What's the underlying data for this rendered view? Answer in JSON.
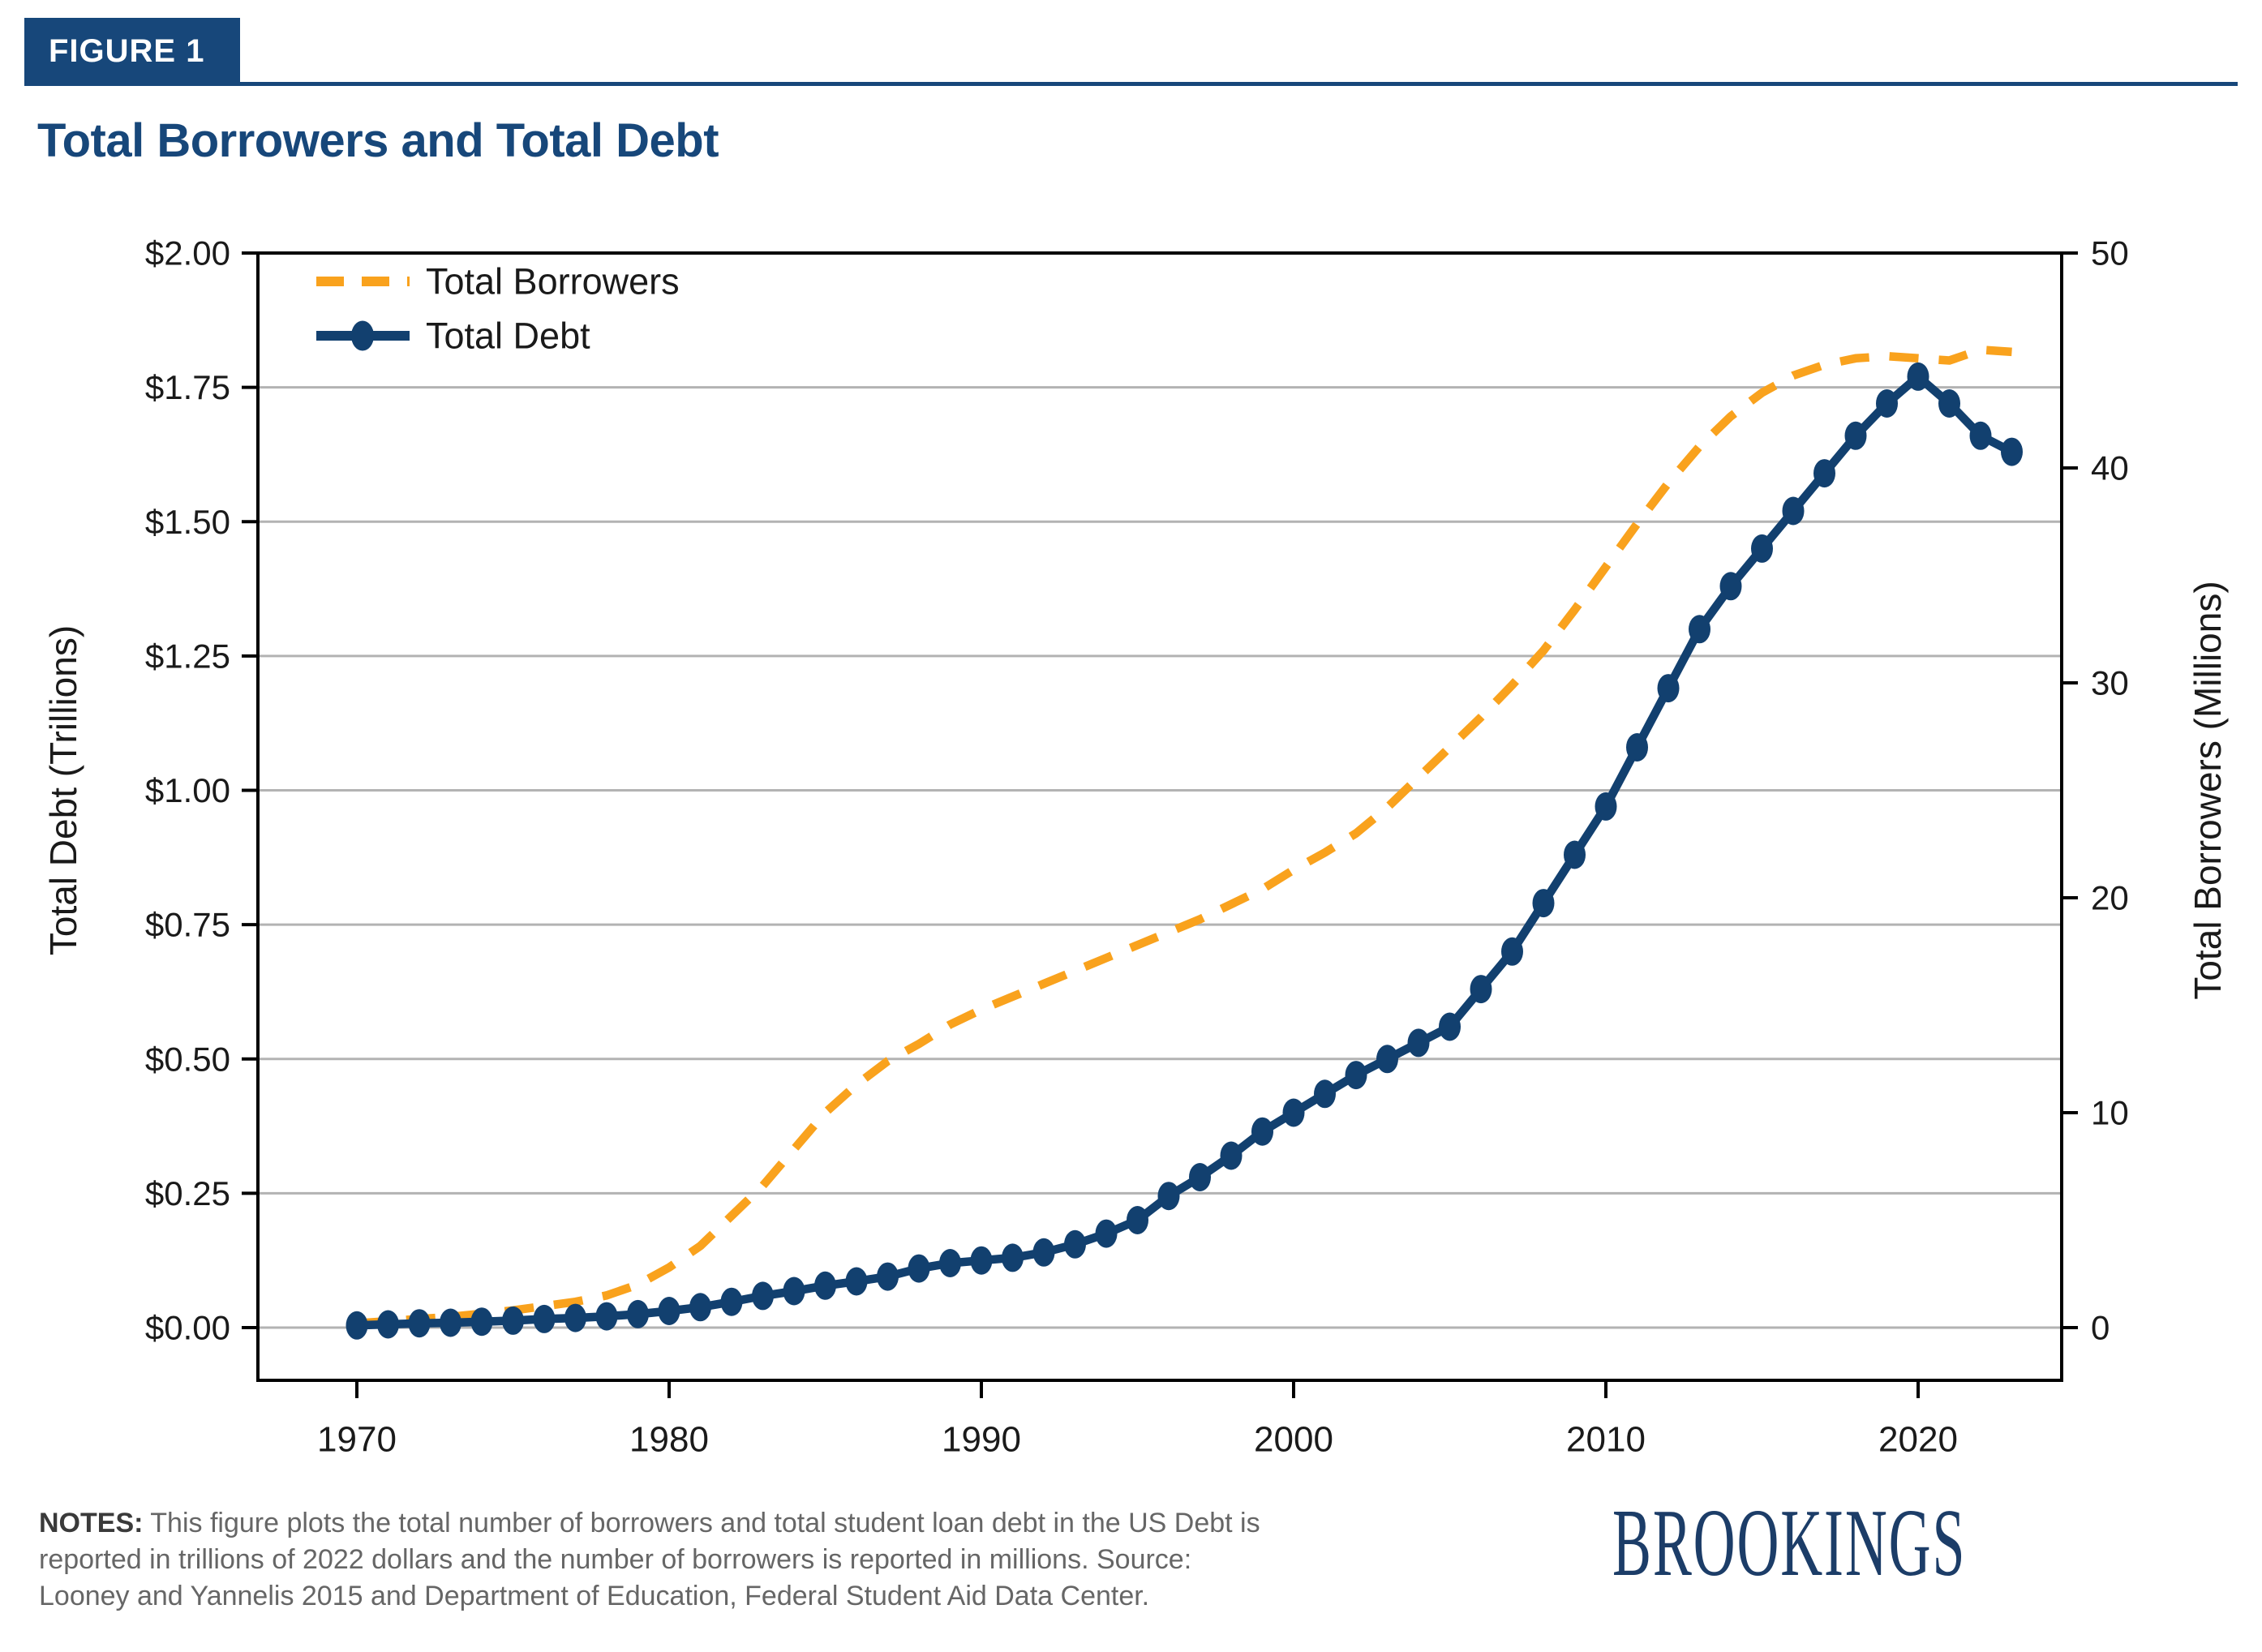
{
  "figure_label": "FIGURE 1",
  "title": "Total Borrowers and Total Debt",
  "notes": {
    "label": "NOTES:",
    "text": " This figure plots the total number of borrowers and total student loan debt in the US Debt is reported in trillions of 2022 dollars and the number of borrowers is reported in millions. Source: Looney and Yannelis 2015 and Department of Education, Federal Student Aid Data Center."
  },
  "brand": "BROOKINGS",
  "colors": {
    "navy": "#17477A",
    "debt_line": "#12406F",
    "borrowers_line": "#F9A21D",
    "gridline": "#b3b3b3",
    "spine": "#000000",
    "tick_text": "#1a1a1a",
    "notes_text": "#666666",
    "brand_text": "#1C3D68"
  },
  "chart_data": {
    "type": "line",
    "title": "Total Borrowers and Total Debt",
    "grid": true,
    "legend_position": "top-left",
    "x": [
      1970,
      1971,
      1972,
      1973,
      1974,
      1975,
      1976,
      1977,
      1978,
      1979,
      1980,
      1981,
      1982,
      1983,
      1984,
      1985,
      1986,
      1987,
      1988,
      1989,
      1990,
      1991,
      1992,
      1993,
      1994,
      1995,
      1996,
      1997,
      1998,
      1999,
      2000,
      2001,
      2002,
      2003,
      2004,
      2005,
      2006,
      2007,
      2008,
      2009,
      2010,
      2011,
      2012,
      2013,
      2014,
      2015,
      2016,
      2017,
      2018,
      2019,
      2020,
      2021,
      2022,
      2023
    ],
    "x_axis": {
      "ticks": [
        1970,
        1980,
        1990,
        2000,
        2010,
        2020
      ],
      "range": [
        1966.8,
        2024.6
      ]
    },
    "left_axis": {
      "label": "Total Debt (Trillions)",
      "tick_labels": [
        "$2.00",
        "$1.75",
        "$1.50",
        "$1.25",
        "$1.00",
        "$0.75",
        "$0.50",
        "$0.25",
        "$0.00"
      ],
      "tick_values": [
        2.0,
        1.75,
        1.5,
        1.25,
        1.0,
        0.75,
        0.5,
        0.25,
        0.0
      ],
      "range": [
        0,
        2
      ]
    },
    "right_axis": {
      "label": "Total Borrowers (Millions)",
      "tick_labels": [
        "50",
        "40",
        "30",
        "20",
        "10",
        "0"
      ],
      "tick_values": [
        50,
        40,
        30,
        20,
        10,
        0
      ],
      "range": [
        0,
        50
      ]
    },
    "series": [
      {
        "name": "Total Borrowers",
        "axis": "right",
        "style": "dashed",
        "color": "#F9A21D",
        "values": [
          0.2,
          0.3,
          0.4,
          0.5,
          0.65,
          0.8,
          1.0,
          1.2,
          1.5,
          2.0,
          2.8,
          3.8,
          5.2,
          6.6,
          8.3,
          10.0,
          11.3,
          12.4,
          13.2,
          14.1,
          14.8,
          15.4,
          16.0,
          16.6,
          17.2,
          17.8,
          18.4,
          19.0,
          19.7,
          20.4,
          21.3,
          22.1,
          23.0,
          24.2,
          25.6,
          27.0,
          28.4,
          29.9,
          31.5,
          33.4,
          35.4,
          37.4,
          39.3,
          41.0,
          42.4,
          43.5,
          44.3,
          44.8,
          45.1,
          45.2,
          45.1,
          45.0,
          45.5,
          45.4
        ]
      },
      {
        "name": "Total Debt",
        "axis": "left",
        "style": "solid-markers",
        "color": "#12406F",
        "values": [
          0.004,
          0.006,
          0.008,
          0.009,
          0.011,
          0.013,
          0.016,
          0.018,
          0.021,
          0.025,
          0.031,
          0.038,
          0.048,
          0.059,
          0.068,
          0.078,
          0.086,
          0.095,
          0.11,
          0.12,
          0.125,
          0.13,
          0.14,
          0.155,
          0.175,
          0.2,
          0.245,
          0.28,
          0.32,
          0.365,
          0.4,
          0.435,
          0.47,
          0.5,
          0.53,
          0.56,
          0.63,
          0.7,
          0.79,
          0.88,
          0.97,
          1.08,
          1.19,
          1.3,
          1.38,
          1.45,
          1.52,
          1.59,
          1.66,
          1.72,
          1.77,
          1.72,
          1.66,
          1.63
        ]
      }
    ]
  }
}
